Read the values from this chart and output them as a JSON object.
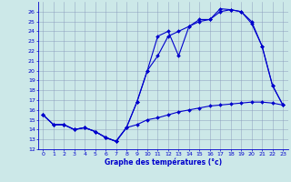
{
  "xlabel": "Graphe des températures (°c)",
  "x_hours": [
    0,
    1,
    2,
    3,
    4,
    5,
    6,
    7,
    8,
    9,
    10,
    11,
    12,
    13,
    14,
    15,
    16,
    17,
    18,
    19,
    20,
    21,
    22,
    23
  ],
  "line_min": [
    15.5,
    14.5,
    14.5,
    14.0,
    14.2,
    13.8,
    13.2,
    12.8,
    14.2,
    14.5,
    15.0,
    15.2,
    15.5,
    15.8,
    16.0,
    16.2,
    16.4,
    16.5,
    16.6,
    16.7,
    16.8,
    16.8,
    16.7,
    16.5
  ],
  "line_max": [
    15.5,
    14.5,
    14.5,
    14.0,
    14.2,
    13.8,
    13.2,
    12.8,
    14.2,
    16.8,
    20.0,
    23.5,
    24.0,
    21.5,
    24.5,
    25.2,
    25.2,
    26.3,
    26.2,
    26.0,
    25.0,
    22.5,
    18.5,
    16.5
  ],
  "line_mid": [
    15.5,
    14.5,
    14.5,
    14.0,
    14.2,
    13.8,
    13.2,
    12.8,
    14.2,
    16.8,
    20.0,
    21.5,
    23.5,
    24.0,
    24.5,
    25.0,
    25.2,
    26.0,
    26.2,
    26.0,
    24.8,
    22.5,
    18.5,
    16.5
  ],
  "ylim_min": 12,
  "ylim_max": 27,
  "xlim_min": -0.5,
  "xlim_max": 23.5,
  "yticks": [
    12,
    13,
    14,
    15,
    16,
    17,
    18,
    19,
    20,
    21,
    22,
    23,
    24,
    25,
    26
  ],
  "xticks": [
    0,
    1,
    2,
    3,
    4,
    5,
    6,
    7,
    8,
    9,
    10,
    11,
    12,
    13,
    14,
    15,
    16,
    17,
    18,
    19,
    20,
    21,
    22,
    23
  ],
  "line_color": "#0000cc",
  "bg_color": "#cce8e8",
  "grid_color": "#8899bb",
  "marker": "D",
  "markersize": 2,
  "linewidth": 0.8,
  "tick_fontsize": 4.5,
  "xlabel_fontsize": 5.5
}
